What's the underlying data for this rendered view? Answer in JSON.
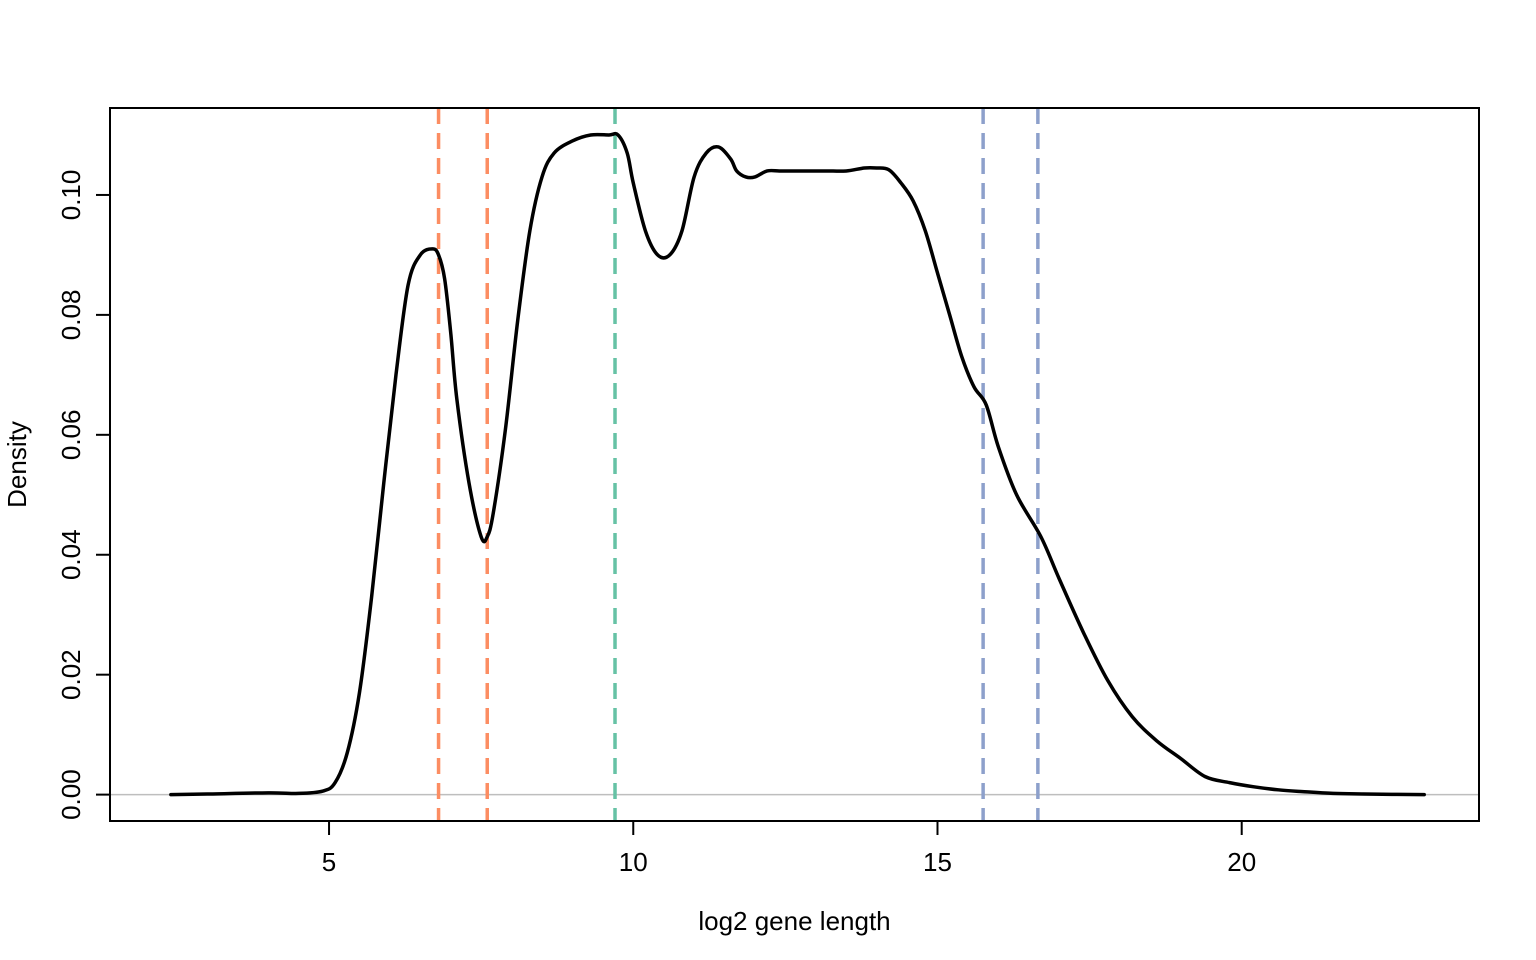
{
  "chart_data": {
    "type": "line",
    "title": "",
    "xlabel": "log2 gene length",
    "ylabel": "Density",
    "xlim": [
      1.4,
      23.9
    ],
    "ylim": [
      -0.0044,
      0.1145
    ],
    "x_ticks": [
      5,
      10,
      15,
      20
    ],
    "x_tick_labels": [
      "5",
      "10",
      "15",
      "20"
    ],
    "y_ticks": [
      0,
      0.02,
      0.04,
      0.06,
      0.08,
      0.1
    ],
    "y_tick_labels": [
      "0.00",
      "0.02",
      "0.04",
      "0.06",
      "0.08",
      "0.10"
    ],
    "grid": false,
    "legend": "none",
    "baseline": {
      "y": 0,
      "color": "#bebebe"
    },
    "series": [
      {
        "color": "#000000",
        "x": [
          2.4,
          3.0,
          4.0,
          4.5,
          4.9,
          5.1,
          5.3,
          5.5,
          5.7,
          5.9,
          6.1,
          6.3,
          6.5,
          6.7,
          6.8,
          6.9,
          7.0,
          7.1,
          7.3,
          7.5,
          7.6,
          7.7,
          7.9,
          8.1,
          8.3,
          8.5,
          8.7,
          9.0,
          9.3,
          9.6,
          9.75,
          9.9,
          10.0,
          10.2,
          10.4,
          10.6,
          10.8,
          11.0,
          11.2,
          11.4,
          11.6,
          11.7,
          11.85,
          12.0,
          12.2,
          12.4,
          12.6,
          12.8,
          13.0,
          13.2,
          13.5,
          13.8,
          14.0,
          14.2,
          14.4,
          14.6,
          14.8,
          15.0,
          15.2,
          15.4,
          15.6,
          15.8,
          16.0,
          16.3,
          16.7,
          17.0,
          17.4,
          17.8,
          18.2,
          18.6,
          19.0,
          19.4,
          19.8,
          20.2,
          20.6,
          21.0,
          21.5,
          22.0,
          23.0
        ],
        "y": [
          0.0,
          0.0001,
          0.0003,
          0.0002,
          0.0006,
          0.002,
          0.007,
          0.017,
          0.033,
          0.052,
          0.07,
          0.085,
          0.09,
          0.091,
          0.09,
          0.086,
          0.077,
          0.066,
          0.052,
          0.043,
          0.043,
          0.047,
          0.061,
          0.079,
          0.094,
          0.103,
          0.107,
          0.109,
          0.11,
          0.11,
          0.11,
          0.107,
          0.102,
          0.094,
          0.09,
          0.09,
          0.094,
          0.103,
          0.107,
          0.108,
          0.106,
          0.104,
          0.103,
          0.103,
          0.104,
          0.104,
          0.104,
          0.104,
          0.104,
          0.104,
          0.104,
          0.1045,
          0.1045,
          0.1042,
          0.102,
          0.099,
          0.094,
          0.087,
          0.08,
          0.073,
          0.068,
          0.065,
          0.058,
          0.05,
          0.043,
          0.036,
          0.027,
          0.019,
          0.013,
          0.009,
          0.006,
          0.003,
          0.002,
          0.0013,
          0.0008,
          0.0005,
          0.0002,
          0.0001,
          0.0
        ]
      }
    ],
    "vlines": [
      {
        "x": 6.8,
        "color": "#fc8d62",
        "style": "dashed"
      },
      {
        "x": 7.6,
        "color": "#fc8d62",
        "style": "dashed"
      },
      {
        "x": 9.7,
        "color": "#66c2a5",
        "style": "dashed"
      },
      {
        "x": 15.75,
        "color": "#8da0cb",
        "style": "dashed"
      },
      {
        "x": 16.65,
        "color": "#8da0cb",
        "style": "dashed"
      }
    ]
  }
}
